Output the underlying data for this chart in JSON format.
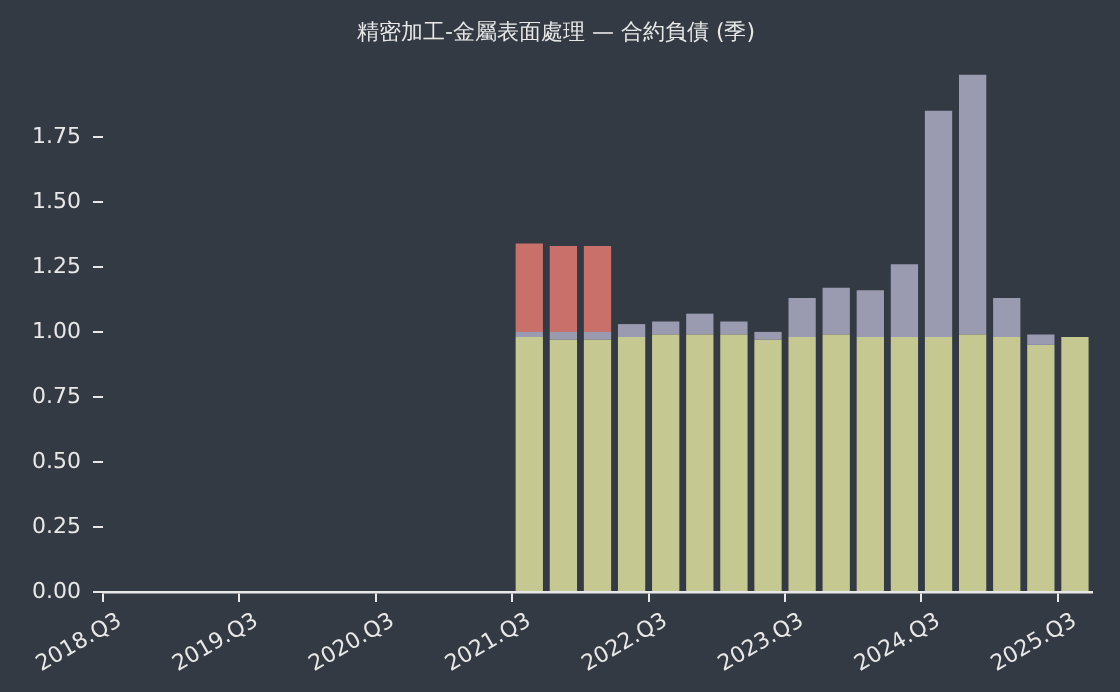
{
  "chart_data": {
    "type": "bar",
    "title": "精密加工-金屬表面處理 — 合約負債 (季)",
    "stacked": true,
    "categories": [
      "2018.Q3",
      null,
      null,
      null,
      "2019.Q3",
      null,
      null,
      null,
      "2020.Q3",
      null,
      null,
      null,
      "2021.Q3",
      null,
      null,
      null,
      "2022.Q3",
      null,
      null,
      null,
      "2023.Q3",
      null,
      null,
      null,
      "2024.Q3",
      null,
      null,
      null,
      "2025.Q3"
    ],
    "series": [
      {
        "color": "#c5c991",
        "values": [
          null,
          null,
          null,
          null,
          null,
          null,
          null,
          null,
          null,
          null,
          null,
          null,
          0.98,
          0.97,
          0.97,
          0.98,
          0.99,
          0.99,
          0.99,
          0.97,
          0.98,
          0.99,
          0.98,
          0.98,
          0.98,
          0.99,
          0.98,
          0.95,
          0.98
        ]
      },
      {
        "color": "#9a9ab0",
        "values": [
          null,
          null,
          null,
          null,
          null,
          null,
          null,
          null,
          null,
          null,
          null,
          null,
          0.02,
          0.03,
          0.03,
          0.05,
          0.05,
          0.08,
          0.05,
          0.03,
          0.15,
          0.18,
          0.18,
          0.28,
          0.87,
          1.0,
          0.15,
          0.04,
          null
        ]
      },
      {
        "color": "#c9706a",
        "values": [
          null,
          null,
          null,
          null,
          null,
          null,
          null,
          null,
          null,
          null,
          null,
          null,
          0.34,
          0.33,
          0.33,
          null,
          null,
          null,
          null,
          null,
          null,
          null,
          null,
          null,
          null,
          null,
          null,
          null,
          null
        ]
      }
    ],
    "ylim": [
      0,
      1.99
    ],
    "yticks": [
      {
        "value": 0,
        "label": "0.00"
      },
      0.25,
      {
        "value": 0.5,
        "label": "0.50"
      },
      0.75,
      {
        "value": 1,
        "label": "1.00"
      },
      1.25,
      {
        "value": 1.5,
        "label": "1.50"
      },
      1.75
    ],
    "grid": false,
    "legend": false
  }
}
